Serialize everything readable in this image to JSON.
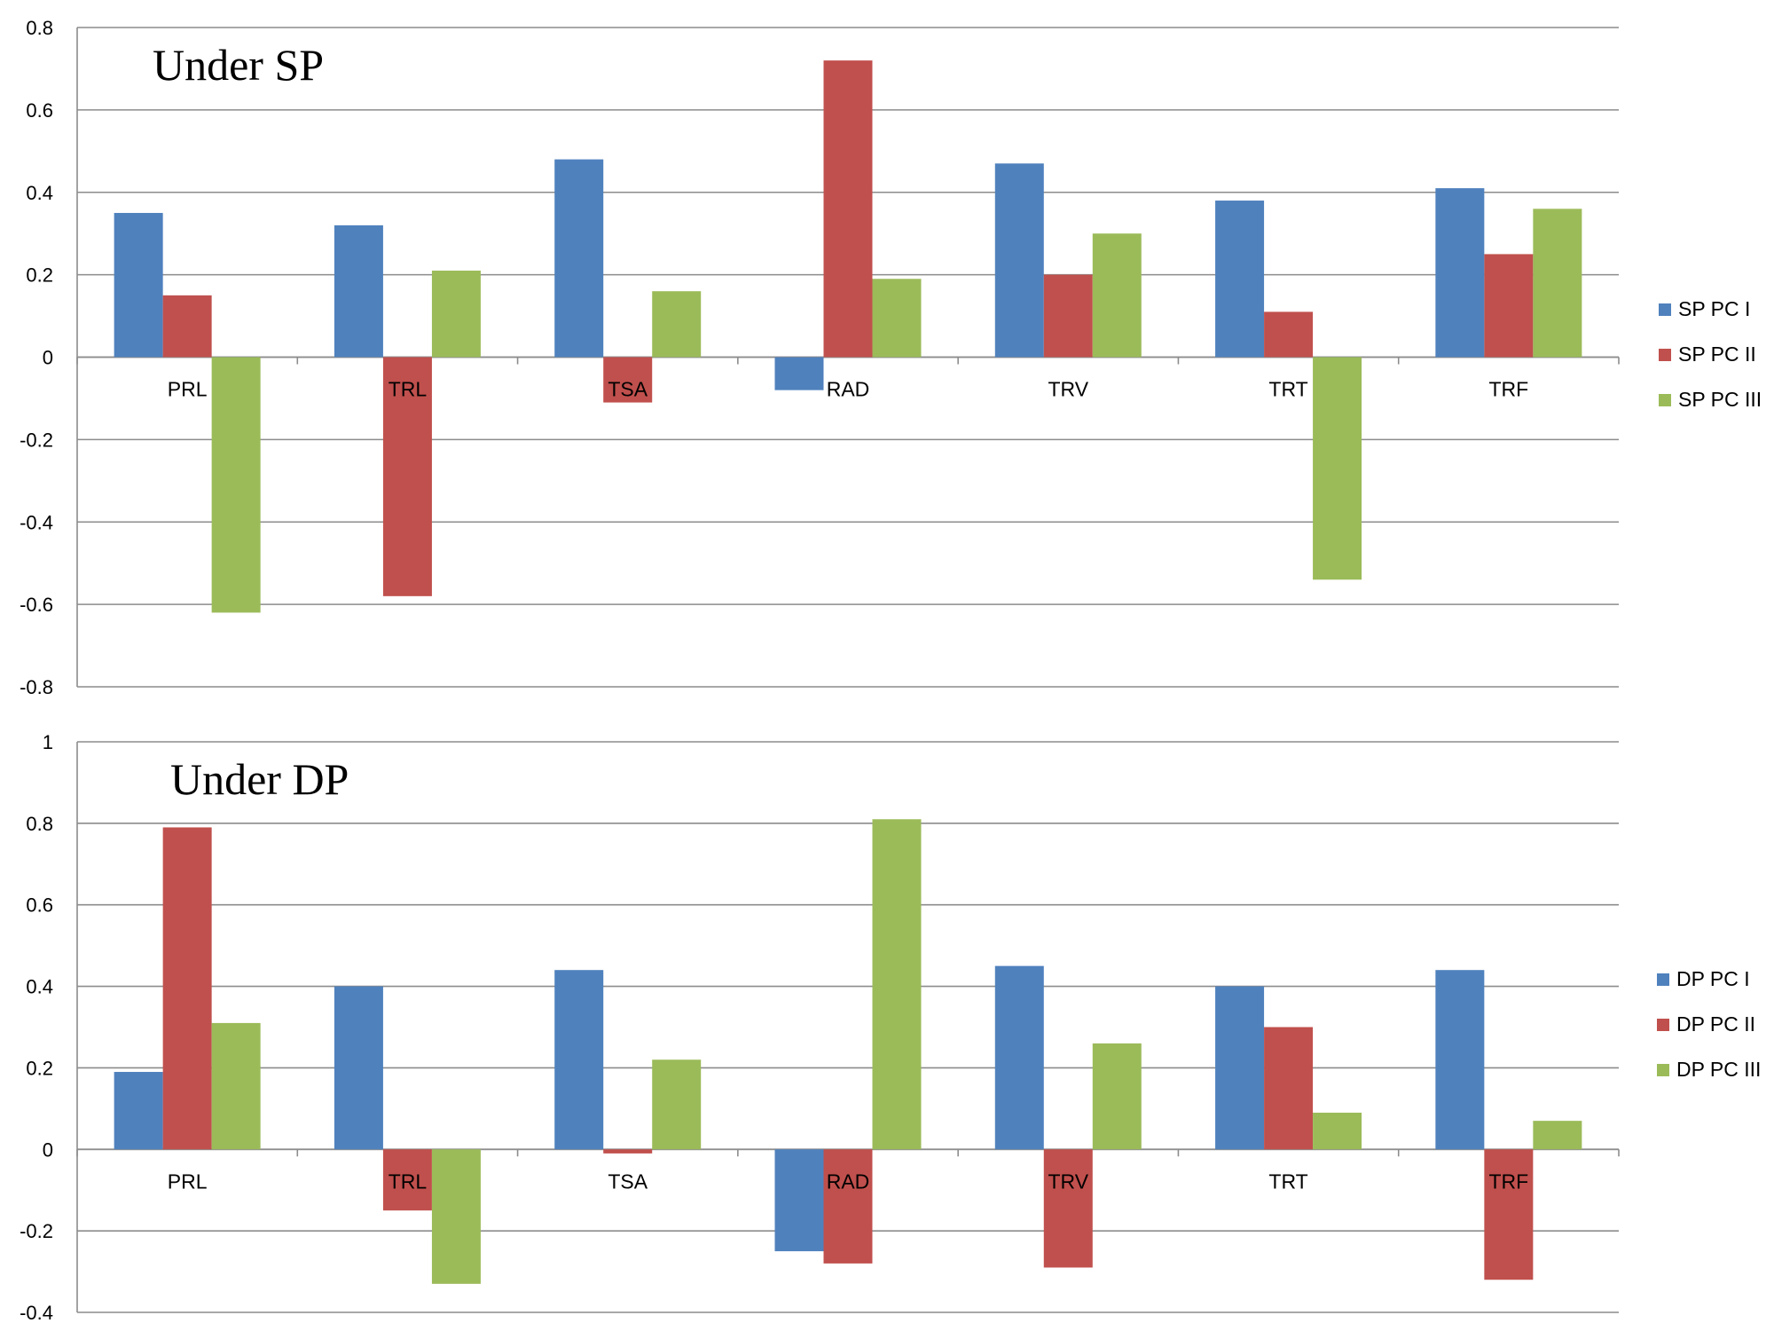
{
  "chart_data": [
    {
      "type": "bar",
      "title": "Under SP",
      "xlabel": "",
      "ylabel": "",
      "ylim": [
        -0.8,
        0.8
      ],
      "yticks": [
        0.8,
        0.6,
        0.4,
        0.2,
        0,
        -0.2,
        -0.4,
        -0.6,
        -0.8
      ],
      "ytick_labels": [
        "0.8",
        "0.6",
        "0.4",
        "0.2",
        "0",
        "-0.2",
        "-0.4",
        "-0.6",
        "-0.8"
      ],
      "grid": true,
      "legend_position": "right",
      "categories": [
        "PRL",
        "TRL",
        "TSA",
        "RAD",
        "TRV",
        "TRT",
        "TRF"
      ],
      "series": [
        {
          "name": "SP PC I",
          "color": "#4F81BD",
          "values": [
            0.35,
            0.32,
            0.48,
            -0.08,
            0.47,
            0.38,
            0.41
          ]
        },
        {
          "name": "SP PC II",
          "color": "#C0504D",
          "values": [
            0.15,
            -0.58,
            -0.11,
            0.72,
            0.2,
            0.11,
            0.25
          ]
        },
        {
          "name": "SP PC III",
          "color": "#9BBB59",
          "values": [
            -0.62,
            0.21,
            0.16,
            0.19,
            0.3,
            -0.54,
            0.36
          ]
        }
      ]
    },
    {
      "type": "bar",
      "title": "Under DP",
      "xlabel": "",
      "ylabel": "",
      "ylim": [
        -0.4,
        1.0
      ],
      "yticks": [
        1,
        0.8,
        0.6,
        0.4,
        0.2,
        0,
        -0.2,
        -0.4
      ],
      "ytick_labels": [
        "1",
        "0.8",
        "0.6",
        "0.4",
        "0.2",
        "0",
        "-0.2",
        "-0.4"
      ],
      "grid": true,
      "legend_position": "right",
      "categories": [
        "PRL",
        "TRL",
        "TSA",
        "RAD",
        "TRV",
        "TRT",
        "TRF"
      ],
      "series": [
        {
          "name": "DP PC I",
          "color": "#4F81BD",
          "values": [
            0.19,
            0.4,
            0.44,
            -0.25,
            0.45,
            0.4,
            0.44
          ]
        },
        {
          "name": "DP PC II",
          "color": "#C0504D",
          "values": [
            0.79,
            -0.15,
            -0.01,
            -0.28,
            -0.29,
            0.3,
            -0.32
          ]
        },
        {
          "name": "DP PC III",
          "color": "#9BBB59",
          "values": [
            0.31,
            -0.33,
            0.22,
            0.81,
            0.26,
            0.09,
            0.07
          ]
        }
      ]
    }
  ]
}
